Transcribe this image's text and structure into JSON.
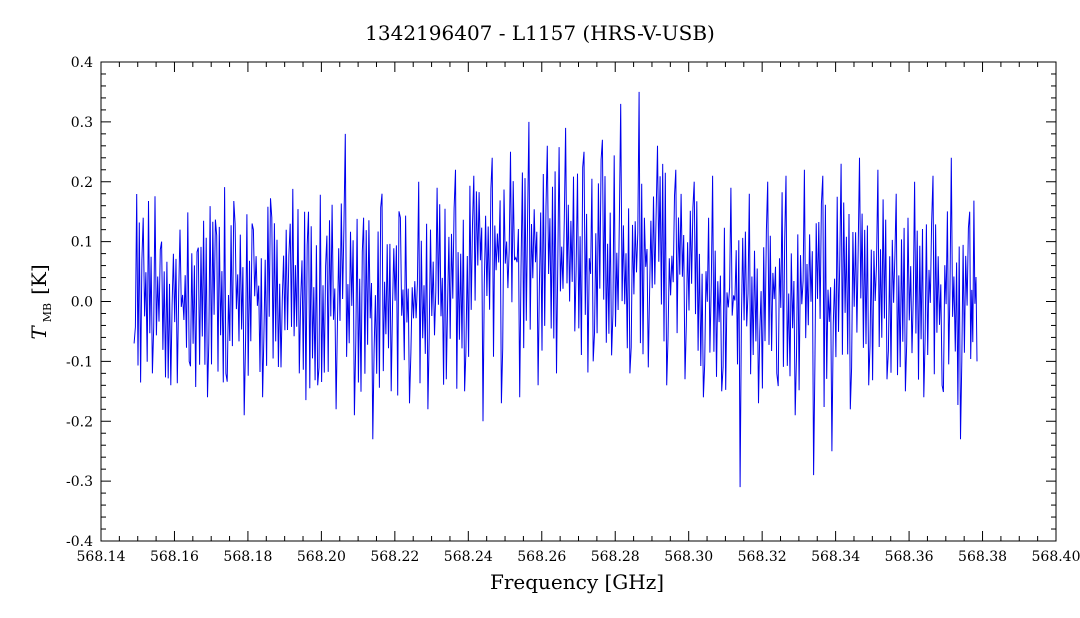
{
  "chart_data": {
    "type": "line",
    "title": "1342196407 - L1157 (HRS-V-USB)",
    "xlabel": "Frequency [GHz]",
    "ylabel_main": "T",
    "ylabel_sub": "MB",
    "ylabel_unit": "[K]",
    "xlim": [
      568.14,
      568.4
    ],
    "ylim": [
      -0.4,
      0.4
    ],
    "xticks": [
      "568.14",
      "568.16",
      "568.18",
      "568.20",
      "568.22",
      "568.24",
      "568.26",
      "568.28",
      "568.30",
      "568.32",
      "568.34",
      "568.36",
      "568.38",
      "568.40"
    ],
    "yticks": [
      "-0.4",
      "-0.3",
      "-0.2",
      "-0.1",
      "0.0",
      "0.1",
      "0.2",
      "0.3",
      "0.4"
    ],
    "grid": false,
    "series": [
      {
        "color": "#0000ee",
        "x": [
          568.149,
          568.1515,
          568.154,
          568.1565,
          568.159,
          568.1615,
          568.164,
          568.1665,
          568.169,
          568.1715,
          568.174,
          568.1765,
          568.179,
          568.1815,
          568.184,
          568.1865,
          568.189,
          568.1915,
          568.194,
          568.1965,
          568.199,
          568.2015,
          568.204,
          568.2065,
          568.209,
          568.2115,
          568.214,
          568.2165,
          568.219,
          568.2215,
          568.224,
          568.2265,
          568.229,
          568.2315,
          568.234,
          568.2365,
          568.239,
          568.2415,
          568.244,
          568.2465,
          568.249,
          568.2515,
          568.254,
          568.2565,
          568.259,
          568.2615,
          568.264,
          568.2665,
          568.269,
          568.2715,
          568.274,
          568.2765,
          568.279,
          568.2815,
          568.284,
          568.2865,
          568.289,
          568.2915,
          568.294,
          568.2965,
          568.299,
          568.3015,
          568.304,
          568.3065,
          568.309,
          568.3115,
          568.314,
          568.3165,
          568.319,
          568.3215,
          568.324,
          568.3265,
          568.329,
          568.3315,
          568.334,
          568.3365,
          568.339,
          568.3415,
          568.344,
          568.3465,
          568.349,
          568.3515,
          568.354,
          568.3565,
          568.359,
          568.3615,
          568.364,
          568.3665,
          568.369,
          568.3715,
          568.374,
          568.3765,
          568.3785
        ],
        "y": [
          -0.07,
          0.14,
          -0.12,
          0.1,
          -0.14,
          0.12,
          -0.1,
          0.09,
          -0.16,
          0.11,
          -0.12,
          0.13,
          -0.19,
          0.12,
          -0.16,
          0.14,
          -0.11,
          0.13,
          -0.12,
          0.15,
          -0.14,
          0.11,
          -0.18,
          0.28,
          -0.19,
          0.14,
          -0.23,
          0.18,
          -0.15,
          0.14,
          -0.17,
          0.2,
          -0.18,
          0.19,
          -0.13,
          0.22,
          -0.15,
          0.21,
          -0.2,
          0.24,
          -0.17,
          0.25,
          -0.16,
          0.3,
          -0.14,
          0.26,
          -0.12,
          0.29,
          -0.05,
          0.25,
          -0.1,
          0.27,
          -0.09,
          0.33,
          -0.12,
          0.35,
          -0.11,
          0.26,
          -0.14,
          0.22,
          -0.13,
          0.2,
          -0.16,
          0.21,
          -0.15,
          0.19,
          -0.31,
          0.18,
          -0.17,
          0.2,
          -0.12,
          0.21,
          -0.19,
          0.22,
          -0.29,
          0.21,
          -0.25,
          0.23,
          -0.18,
          0.24,
          -0.14,
          0.22,
          -0.13,
          0.18,
          -0.15,
          0.2,
          -0.16,
          0.21,
          -0.14,
          0.24,
          -0.23,
          0.15,
          -0.1
        ]
      }
    ]
  }
}
